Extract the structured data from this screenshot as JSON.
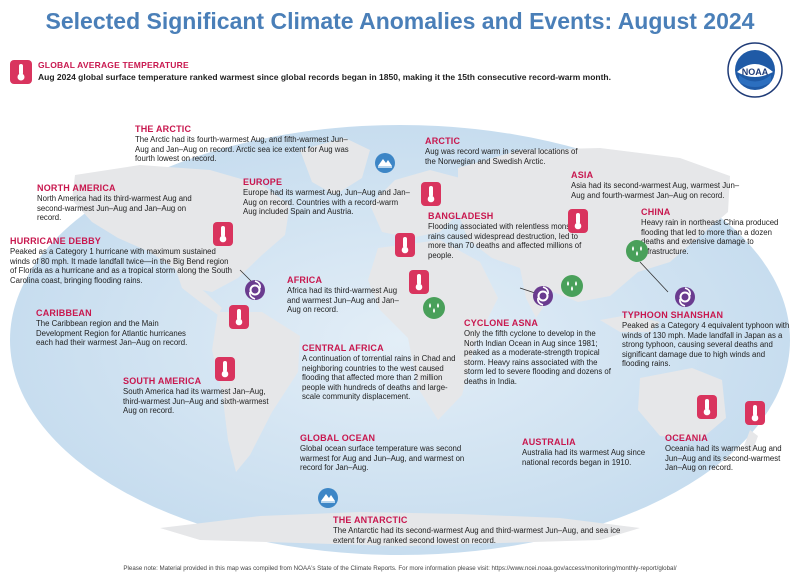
{
  "title": "Selected Significant Climate Anomalies and Events: August 2024",
  "logo_text": "NOAA",
  "global_avg": {
    "heading": "GLOBAL AVERAGE TEMPERATURE",
    "text": "Aug 2024 global surface temperature ranked warmest since global records began in 1850, making it the 15th consecutive record-warm month."
  },
  "events": {
    "the_arctic": {
      "heading": "THE ARCTIC",
      "text": "The Arctic had its fourth-warmest Aug, and fifth-warmest Jun–Aug and Jan–Aug on record. Arctic sea ice extent for Aug was fourth lowest on record."
    },
    "arctic": {
      "heading": "ARCTIC",
      "text": "Aug was record warm in several locations of the Norwegian and Swedish Arctic."
    },
    "north_america": {
      "heading": "NORTH AMERICA",
      "text": "North America had its third-warmest Aug and second-warmest Jun–Aug and Jan–Aug on record."
    },
    "europe": {
      "heading": "EUROPE",
      "text": "Europe had its warmest Aug, Jun–Aug and Jan–Aug on record. Countries with a record-warm Aug included Spain and Austria."
    },
    "asia": {
      "heading": "ASIA",
      "text": "Asia had its second-warmest Aug, warmest Jun–Aug and fourth-warmest Jan–Aug on record."
    },
    "bangladesh": {
      "heading": "BANGLADESH",
      "text": "Flooding associated with relentless monsoon rains caused widespread destruction, led to more than 70 deaths and affected millions of people."
    },
    "china": {
      "heading": "CHINA",
      "text": "Heavy rain in northeast China produced flooding that led to more than a dozen deaths and extensive damage to infrastructure."
    },
    "hurricane_debby": {
      "heading": "HURRICANE DEBBY",
      "text": "Peaked as a Category 1 hurricane with maximum sustained winds of 80 mph. It made landfall twice—in the Big Bend region of Florida as a hurricane and as a tropical storm along the South Carolina coast, bringing flooding rains."
    },
    "africa": {
      "heading": "AFRICA",
      "text": "Africa had its third-warmest Aug and warmest Jun–Aug and Jan–Aug on record."
    },
    "caribbean": {
      "heading": "CARIBBEAN",
      "text": "The Caribbean region and the Main Development Region for Atlantic hurricanes each had their warmest Jan–Aug on record."
    },
    "typhoon_shanshan": {
      "heading": "TYPHOON SHANSHAN",
      "text": "Peaked as a Category 4 equivalent typhoon with winds of 130 mph. Made landfall in Japan as a strong typhoon, causing several deaths and significant damage due to high winds and flooding rains."
    },
    "cyclone_asna": {
      "heading": "CYCLONE ASNA",
      "text": "Only the fifth cyclone to develop in the North Indian Ocean in Aug since 1981; peaked as a moderate-strength tropical storm. Heavy rains associated with the storm led to severe flooding and dozens of deaths in India."
    },
    "central_africa": {
      "heading": "CENTRAL AFRICA",
      "text": "A continuation of torrential rains in Chad and neighboring countries to the west caused flooding that affected more than 2 million people with hundreds of deaths and large-scale community displacement."
    },
    "south_america": {
      "heading": "SOUTH AMERICA",
      "text": "South America had its warmest Jan–Aug, third-warmest Jun–Aug and sixth-warmest Aug on record."
    },
    "global_ocean": {
      "heading": "GLOBAL OCEAN",
      "text": "Global ocean surface temperature was second warmest for Aug and Jun–Aug, and warmest on record for Jan–Aug."
    },
    "australia": {
      "heading": "AUSTRALIA",
      "text": "Australia had its warmest Aug since national records began in 1910."
    },
    "oceania": {
      "heading": "OCEANIA",
      "text": "Oceania had its warmest Aug and Jun–Aug and its second-warmest Jan–Aug on record."
    },
    "the_antarctic": {
      "heading": "THE ANTARCTIC",
      "text": "The Antarctic had its second-warmest Aug and third-warmest Jun–Aug, and sea ice extent for Aug ranked second lowest on record."
    }
  },
  "footnote": "Please note: Material provided in this map was compiled from NOAA's State of the Climate Reports. For more information please visit: https://www.ncei.noaa.gov/access/monitoring/monthly-report/global/",
  "colors": {
    "title": "#4a7fb8",
    "heading": "#c8174e",
    "thermometer": "#d9345e",
    "rain": "#49a05a",
    "storm": "#6a3b8f",
    "ice": "#3d86c6",
    "ocean": "#cfe3f2",
    "land": "#e6e7e9"
  }
}
